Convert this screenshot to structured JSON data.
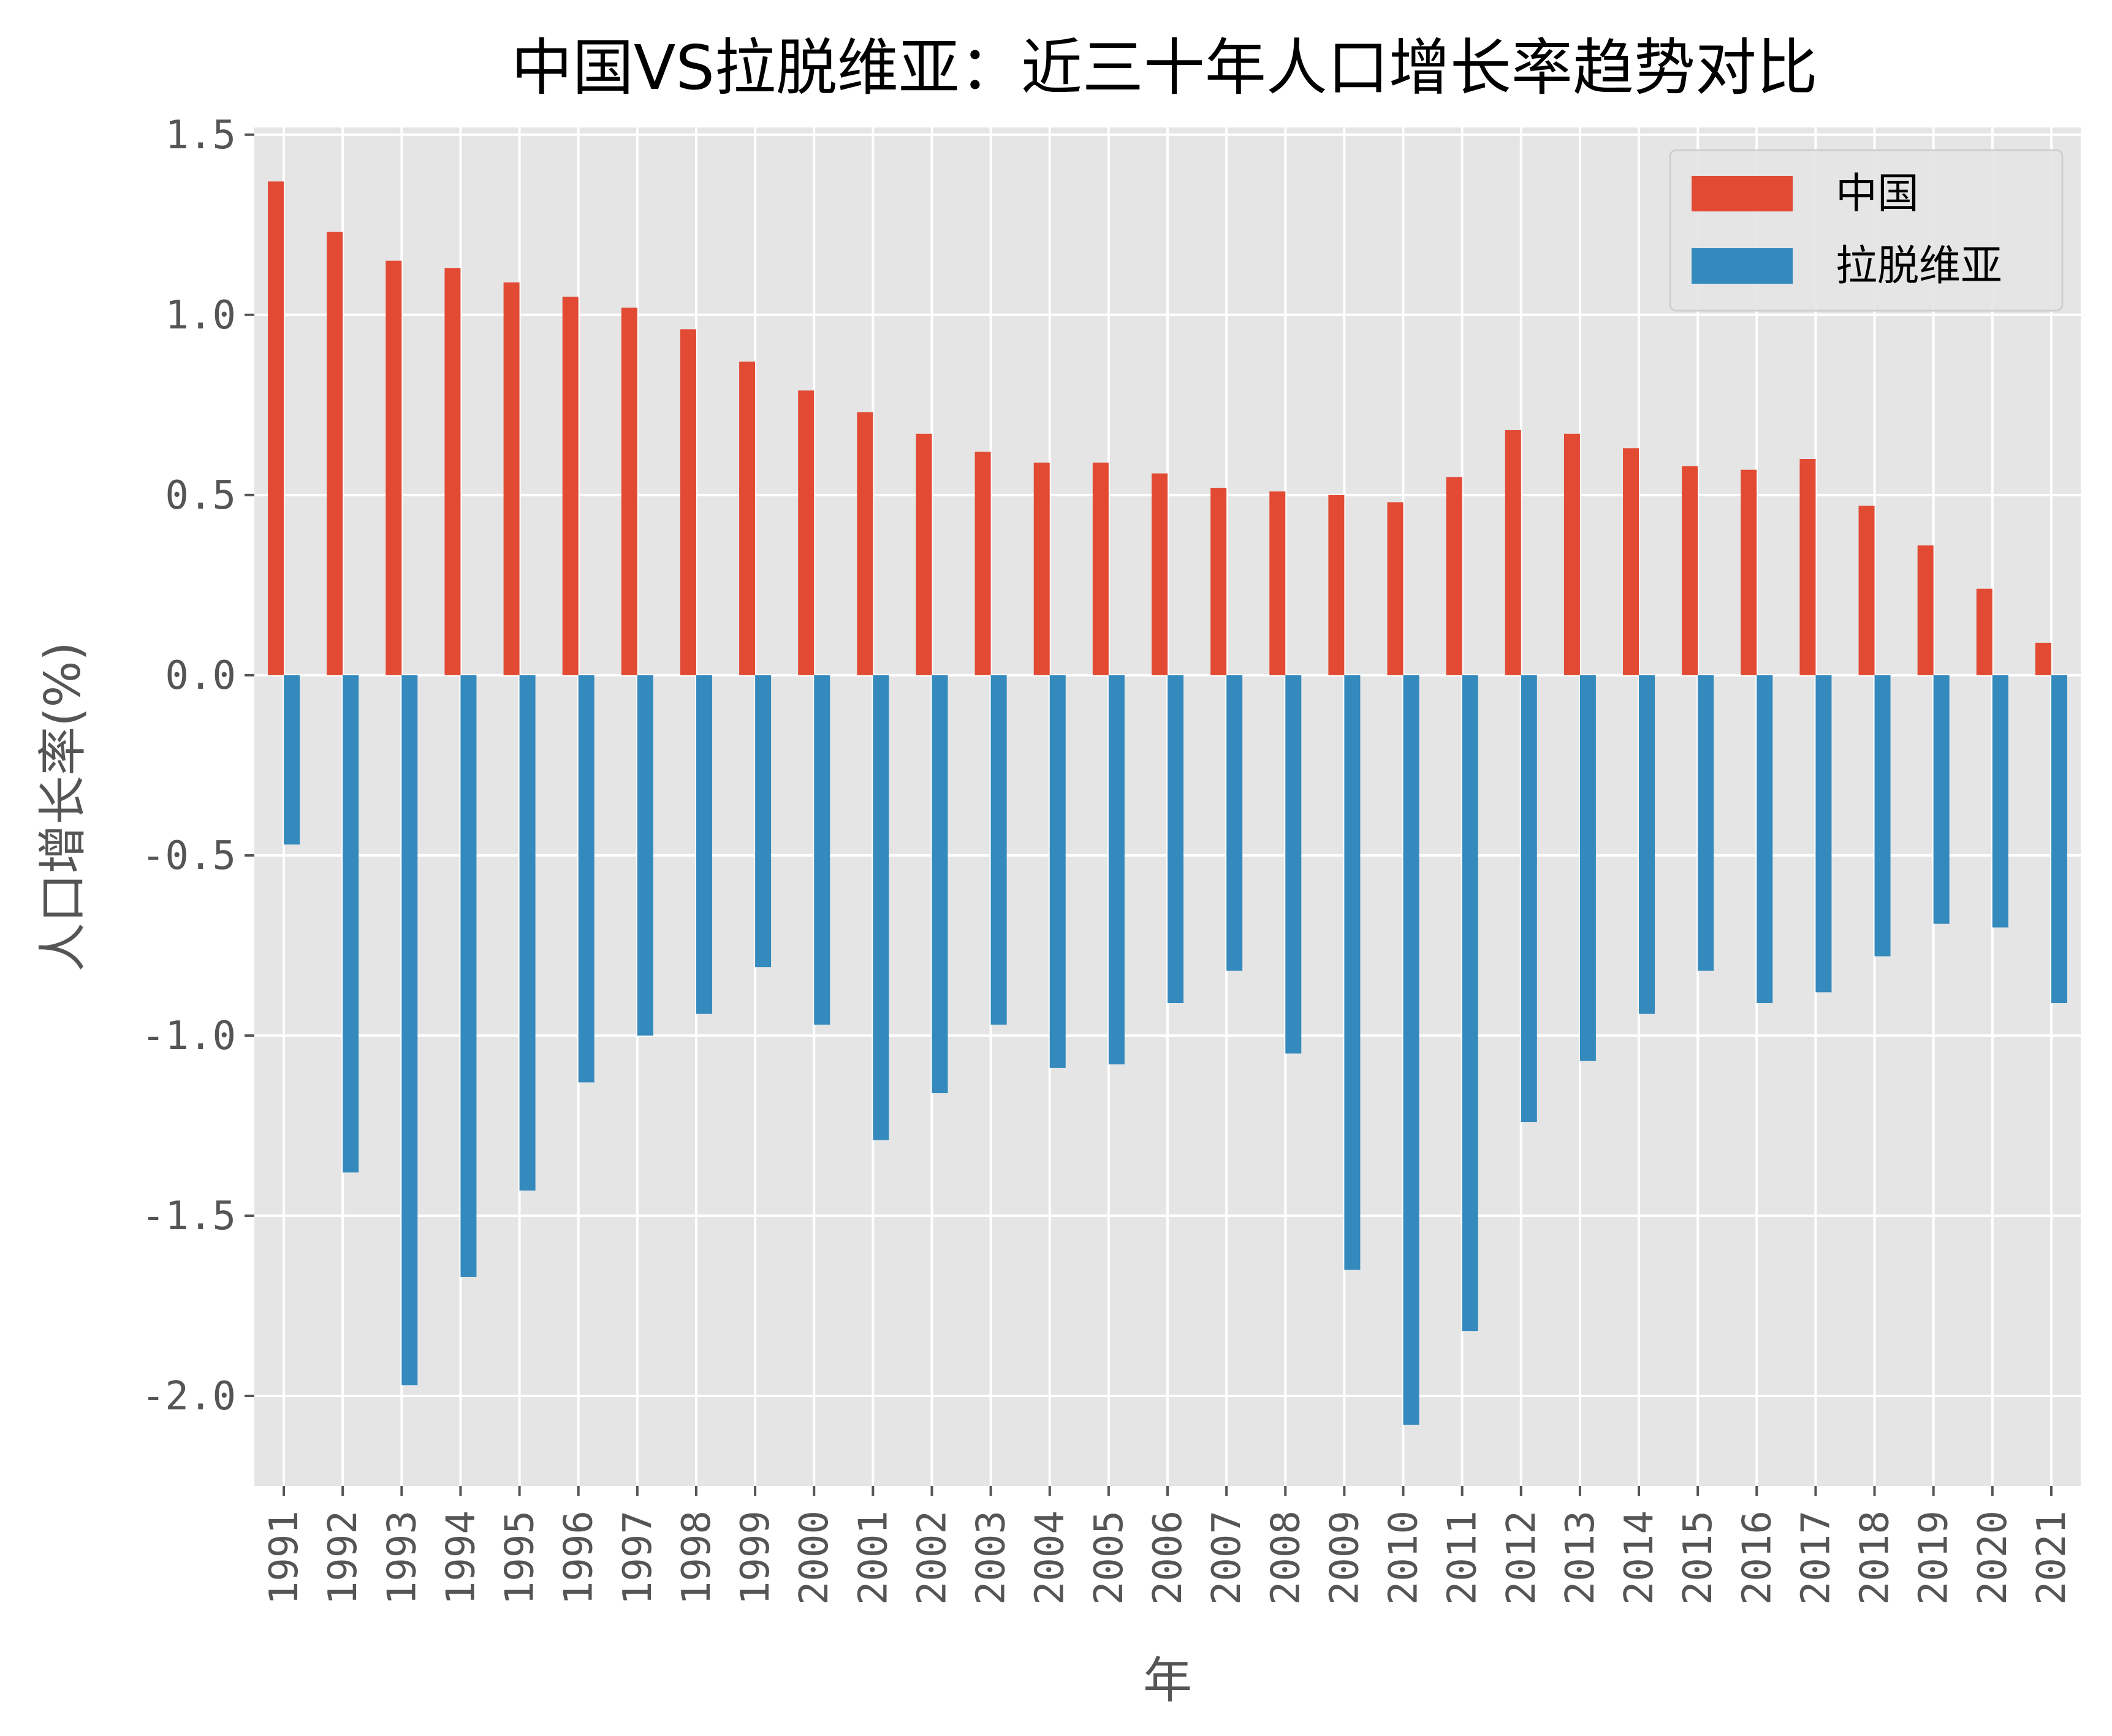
{
  "chart_data": {
    "type": "bar",
    "title": "中国VS拉脱维亚：近三十年人口增长率趋势对比",
    "xlabel": "年",
    "ylabel": "人口增长率(%)",
    "ylim": [
      -2.25,
      1.52
    ],
    "yticks": [
      1.5,
      1.0,
      0.5,
      0.0,
      -0.5,
      -1.0,
      -1.5,
      -2.0
    ],
    "ytick_labels": [
      "1.5",
      "1.0",
      "0.5",
      "0.0",
      "-0.5",
      "-1.0",
      "-1.5",
      "-2.0"
    ],
    "grid": true,
    "legend_position": "top-right",
    "categories": [
      "1991",
      "1992",
      "1993",
      "1994",
      "1995",
      "1996",
      "1997",
      "1998",
      "1999",
      "2000",
      "2001",
      "2002",
      "2003",
      "2004",
      "2005",
      "2006",
      "2007",
      "2008",
      "2009",
      "2010",
      "2011",
      "2012",
      "2013",
      "2014",
      "2015",
      "2016",
      "2017",
      "2018",
      "2019",
      "2020",
      "2021"
    ],
    "series": [
      {
        "name": "中国",
        "color": "#E24A33",
        "values": [
          1.37,
          1.23,
          1.15,
          1.13,
          1.09,
          1.05,
          1.02,
          0.96,
          0.87,
          0.79,
          0.73,
          0.67,
          0.62,
          0.59,
          0.59,
          0.56,
          0.52,
          0.51,
          0.5,
          0.48,
          0.55,
          0.68,
          0.67,
          0.63,
          0.58,
          0.57,
          0.6,
          0.47,
          0.36,
          0.24,
          0.09
        ]
      },
      {
        "name": "拉脱维亚",
        "color": "#348ABD",
        "values": [
          -0.47,
          -1.38,
          -1.97,
          -1.67,
          -1.43,
          -1.13,
          -1.0,
          -0.94,
          -0.81,
          -0.97,
          -1.29,
          -1.16,
          -0.97,
          -1.09,
          -1.08,
          -0.91,
          -0.82,
          -1.05,
          -1.65,
          -2.08,
          -1.82,
          -1.24,
          -1.07,
          -0.94,
          -0.82,
          -0.91,
          -0.88,
          -0.78,
          -0.69,
          -0.7,
          -0.91
        ]
      }
    ]
  }
}
